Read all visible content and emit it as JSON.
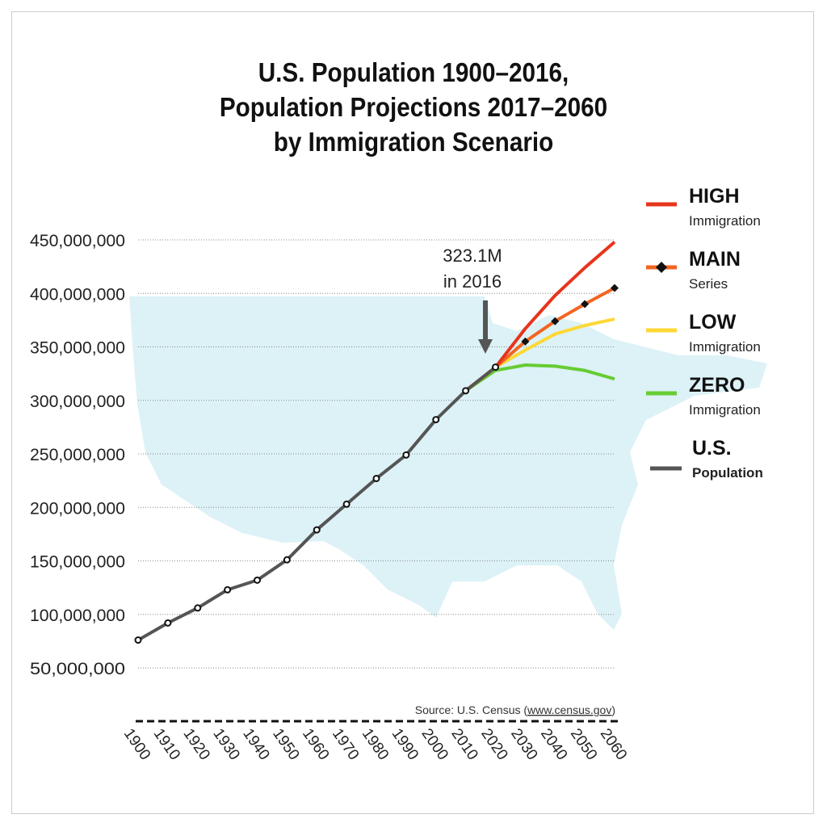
{
  "chart_data": {
    "type": "line",
    "title": [
      "U.S. Population 1900–2016,",
      "Population Projections 2017–2060",
      "by Immigration Scenario"
    ],
    "x_ticks": [
      1900,
      1910,
      1920,
      1930,
      1940,
      1950,
      1960,
      1970,
      1980,
      1990,
      2000,
      2010,
      2020,
      2030,
      2040,
      2050,
      2060
    ],
    "y_ticks": [
      50000000,
      100000000,
      150000000,
      200000000,
      250000000,
      300000000,
      350000000,
      400000000,
      450000000
    ],
    "y_tick_labels": [
      "50,000,000",
      "100,000,000",
      "150,000,000",
      "200,000,000",
      "250,000,000",
      "300,000,000",
      "350,000,000",
      "400,000,000",
      "450,000,000"
    ],
    "xlim": [
      1900,
      2060
    ],
    "ylim": [
      50000000,
      450000000
    ],
    "grid": "horizontal dotted",
    "legend_placement": "right",
    "annotation": {
      "line1": "323.1M",
      "line2": "in 2016",
      "x": 2016,
      "y": 323100000
    },
    "source": {
      "prefix": "Source: U.S. Census (",
      "link": "www.census.gov",
      "suffix": ")"
    },
    "series": [
      {
        "key": "high",
        "name": "HIGH",
        "sub": "Immigration",
        "color": "#e8341c",
        "x": [
          2010,
          2020,
          2030,
          2040,
          2050,
          2060
        ],
        "values": [
          309000000,
          331000000,
          367000000,
          398000000,
          424000000,
          448000000
        ]
      },
      {
        "key": "main",
        "name": "MAIN",
        "sub": "Series",
        "color": "#f26522",
        "marker": "diamond",
        "x": [
          2010,
          2020,
          2030,
          2040,
          2050,
          2060
        ],
        "values": [
          309000000,
          331000000,
          355000000,
          374000000,
          390000000,
          405000000
        ]
      },
      {
        "key": "low",
        "name": "LOW",
        "sub": "Immigration",
        "color": "#fdd835",
        "x": [
          2010,
          2020,
          2030,
          2040,
          2050,
          2060
        ],
        "values": [
          309000000,
          331000000,
          347000000,
          362000000,
          370000000,
          376000000
        ]
      },
      {
        "key": "zero",
        "name": "ZERO",
        "sub": "Immigration",
        "color": "#66cc33",
        "x": [
          2010,
          2020,
          2030,
          2040,
          2050,
          2060
        ],
        "values": [
          309000000,
          328000000,
          333000000,
          332000000,
          328000000,
          320000000
        ]
      },
      {
        "key": "us",
        "name": "U.S.",
        "sub": "Population",
        "color": "#555555",
        "marker": "circle",
        "x": [
          1900,
          1910,
          1920,
          1930,
          1940,
          1950,
          1960,
          1970,
          1980,
          1990,
          2000,
          2010,
          2020
        ],
        "values": [
          76000000,
          92000000,
          106000000,
          123000000,
          132000000,
          151000000,
          179000000,
          203000000,
          227000000,
          249000000,
          282000000,
          309000000,
          331000000
        ]
      }
    ]
  }
}
